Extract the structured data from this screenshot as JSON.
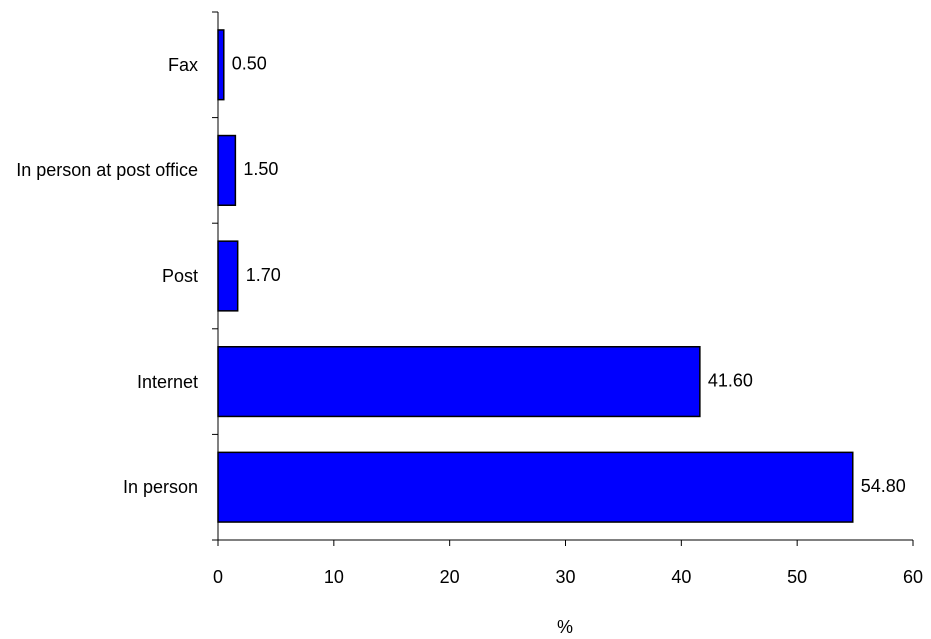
{
  "chart_data": {
    "type": "bar",
    "orientation": "horizontal",
    "categories": [
      "In person",
      "Internet",
      "Post",
      "In person at post office",
      "Fax"
    ],
    "values": [
      54.8,
      41.6,
      1.7,
      1.5,
      0.5
    ],
    "value_labels": [
      "54.80",
      "41.60",
      "1.70",
      "1.50",
      "0.50"
    ],
    "color": "#0000ff",
    "xlabel": "%",
    "xlim": [
      0,
      60
    ],
    "xticks": [
      0,
      10,
      20,
      30,
      40,
      50,
      60
    ],
    "grid": false
  }
}
